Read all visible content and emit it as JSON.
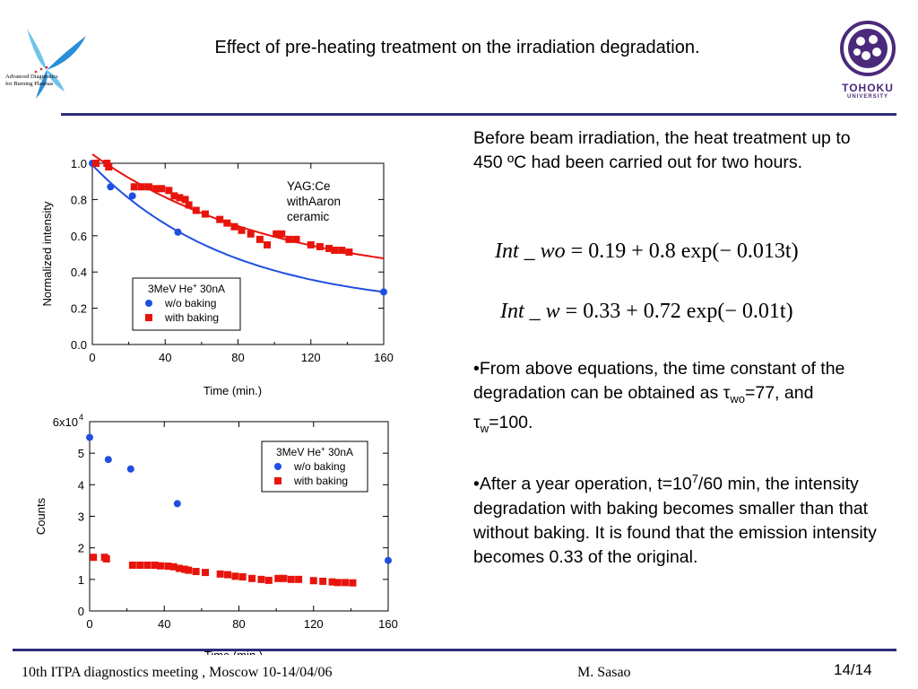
{
  "slide": {
    "title": "Effect of pre-heating treatment on the irradiation degradation.",
    "logo_left": {
      "line1": "Advanced Diagnostics",
      "line2": "for Burning Plasmas"
    },
    "logo_right": {
      "line1": "TOHOKU",
      "line2": "UNIVERSITY"
    },
    "paragraph1": "Before beam irradiation, the heat treatment up to 450 ºC had been carried out for two hours.",
    "equation1": {
      "lhs": "Int _ wo",
      "rhs": "= 0.19 + 0.8 exp(− 0.013t)"
    },
    "equation2": {
      "lhs": "Int _ w",
      "rhs": "= 0.33 + 0.72 exp(− 0.01t)"
    },
    "bullet1": {
      "pre": "•From above equations, the time constant of the degradation can be obtained as ",
      "tau": "τ",
      "sub_wo": "wo",
      "mid": "=77, and ",
      "sub_w": "w",
      "post": "=100."
    },
    "bullet2": {
      "pre": "•After a year operation, t=10",
      "sup": "7",
      "post": "/60 min, the intensity degradation with baking becomes smaller than that without baking. It is found that the emission intensity becomes 0.33 of the original."
    },
    "footer_left": "10th  ITPA diagnostics meeting , Moscow 10-14/04/06",
    "footer_mid": "M. Sasao",
    "footer_right": "14/14"
  },
  "colors": {
    "rule": "#2a2f7a",
    "blue": "#1f4fe0",
    "red": "#e8140c",
    "uni": "#4b2a7b"
  },
  "chart_data": [
    {
      "type": "scatter",
      "xlabel": "Time (min.)",
      "ylabel": "Normalized intensity",
      "xlim": [
        0,
        160
      ],
      "ylim": [
        0,
        1.0
      ],
      "xticks": [
        "0",
        "40",
        "80",
        "120",
        "160"
      ],
      "yticks": [
        "0.0",
        "0.2",
        "0.4",
        "0.6",
        "0.8",
        "1.0"
      ],
      "annotation": [
        "YAG:Ce",
        "withAaron",
        "ceramic"
      ],
      "legend_title": "3MeV He+ 30nA",
      "legend_position": "bottom-center",
      "series": [
        {
          "name": "w/o baking",
          "color": "#1f4fe0",
          "marker": "circle",
          "x": [
            0,
            10,
            22,
            47,
            160
          ],
          "y": [
            1.0,
            0.87,
            0.82,
            0.62,
            0.29
          ],
          "fit": "0.19 + 0.8 exp(-0.013t)"
        },
        {
          "name": "with baking",
          "color": "#e8140c",
          "marker": "square",
          "x": [
            2,
            8,
            9,
            23,
            27,
            31,
            35,
            38,
            42,
            45,
            48,
            51,
            53,
            57,
            62,
            70,
            74,
            78,
            82,
            87,
            92,
            96,
            101,
            104,
            108,
            112,
            120,
            125,
            130,
            133,
            137,
            141
          ],
          "y": [
            1.0,
            1.0,
            0.98,
            0.87,
            0.87,
            0.87,
            0.86,
            0.86,
            0.85,
            0.82,
            0.81,
            0.8,
            0.77,
            0.74,
            0.72,
            0.69,
            0.67,
            0.65,
            0.63,
            0.61,
            0.58,
            0.55,
            0.61,
            0.61,
            0.58,
            0.58,
            0.55,
            0.54,
            0.53,
            0.52,
            0.52,
            0.51
          ],
          "fit": "0.33 + 0.72 exp(-0.01t)"
        }
      ]
    },
    {
      "type": "scatter",
      "xlabel": "Time (min.)",
      "ylabel": "Counts",
      "xlim": [
        0,
        160
      ],
      "ylim": [
        0,
        60000
      ],
      "xticks": [
        "0",
        "40",
        "80",
        "120",
        "160"
      ],
      "yticks": [
        "0",
        "1",
        "2",
        "3",
        "4",
        "5",
        "6x10"
      ],
      "ytick_top_sup": "4",
      "legend_title": "3MeV He+ 30nA",
      "legend_position": "top-right",
      "series": [
        {
          "name": "w/o baking",
          "color": "#1f4fe0",
          "marker": "circle",
          "x": [
            0,
            10,
            22,
            47,
            160
          ],
          "y": [
            55000,
            48000,
            45000,
            34000,
            16000
          ]
        },
        {
          "name": "with baking",
          "color": "#e8140c",
          "marker": "square",
          "x": [
            2,
            8,
            9,
            23,
            27,
            31,
            35,
            38,
            42,
            45,
            48,
            51,
            53,
            57,
            62,
            70,
            74,
            78,
            82,
            87,
            92,
            96,
            101,
            104,
            108,
            112,
            120,
            125,
            130,
            133,
            137,
            141
          ],
          "y": [
            17000,
            17000,
            16500,
            14500,
            14500,
            14500,
            14500,
            14300,
            14200,
            14000,
            13500,
            13200,
            12900,
            12500,
            12200,
            11700,
            11500,
            11000,
            10800,
            10300,
            10000,
            9700,
            10300,
            10300,
            10000,
            10000,
            9600,
            9400,
            9200,
            9000,
            9000,
            8900
          ]
        }
      ]
    }
  ]
}
